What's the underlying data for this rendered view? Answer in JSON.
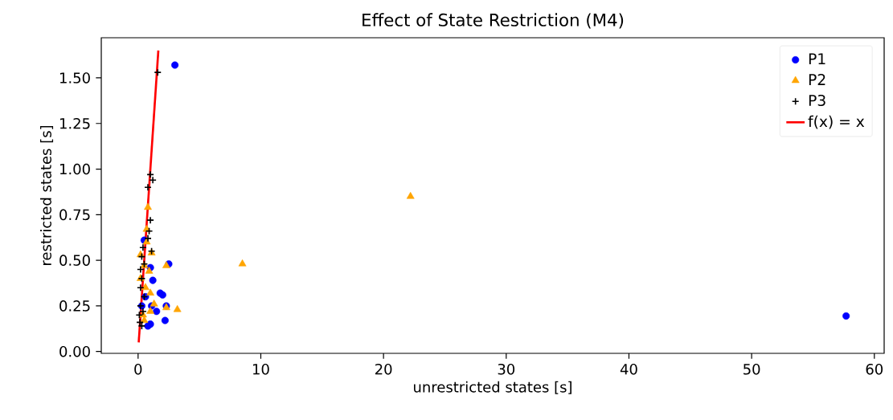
{
  "chart_data": {
    "type": "scatter",
    "title": "Effect of State Restriction (M4)",
    "xlabel": "unrestricted states [s]",
    "ylabel": "restricted states [s]",
    "xlim": [
      -3.0,
      60.8
    ],
    "ylim": [
      -0.01,
      1.72
    ],
    "xticks": [
      0,
      10,
      20,
      30,
      40,
      50,
      60
    ],
    "yticks": [
      {
        "value": 0,
        "label": "0.00"
      },
      {
        "value": 0.25,
        "label": "0.25"
      },
      {
        "value": 0.5,
        "label": "0.50"
      },
      {
        "value": 0.75,
        "label": "0.75"
      },
      {
        "value": 1.0,
        "label": "1.00"
      },
      {
        "value": 1.25,
        "label": "1.25"
      },
      {
        "value": 1.5,
        "label": "1.50"
      }
    ],
    "legend": "top right",
    "series": [
      {
        "name": "P1",
        "color": "#0000ff",
        "marker": "circle",
        "x": [
          3.0,
          57.7,
          2.5,
          1.0,
          1.2,
          1.8,
          2.0,
          2.3,
          2.2,
          1.5,
          1.0,
          0.8,
          0.3,
          0.6,
          1.1,
          0.5
        ],
        "values": [
          1.57,
          0.195,
          0.48,
          0.46,
          0.39,
          0.32,
          0.31,
          0.25,
          0.17,
          0.22,
          0.15,
          0.14,
          0.25,
          0.3,
          0.25,
          0.61
        ]
      },
      {
        "name": "P2",
        "color": "#ffa500",
        "marker": "triangle",
        "x": [
          22.2,
          8.5,
          2.3,
          3.2,
          2.3,
          0.8,
          0.7,
          0.7,
          1.1,
          0.2,
          0.5,
          0.9,
          1.0,
          1.3,
          1.0,
          0.4,
          0.6,
          0.2,
          0.5
        ],
        "values": [
          0.85,
          0.48,
          0.47,
          0.23,
          0.24,
          0.79,
          0.67,
          0.6,
          0.54,
          0.53,
          0.47,
          0.44,
          0.32,
          0.26,
          0.22,
          0.2,
          0.35,
          0.4,
          0.17
        ]
      },
      {
        "name": "P3",
        "color": "#000000",
        "marker": "cross",
        "x": [
          1.6,
          1.0,
          1.2,
          0.8,
          1.0,
          0.9,
          0.8,
          1.1,
          0.4,
          0.3,
          0.5,
          0.2,
          0.3,
          0.2,
          0.2,
          0.1,
          0.15,
          0.3,
          0.4,
          0.5
        ],
        "values": [
          1.53,
          0.97,
          0.94,
          0.9,
          0.72,
          0.66,
          0.62,
          0.55,
          0.57,
          0.52,
          0.48,
          0.45,
          0.4,
          0.35,
          0.25,
          0.2,
          0.16,
          0.14,
          0.22,
          0.3
        ]
      },
      {
        "name": "f(x) = x",
        "type": "line",
        "color": "#ff0000",
        "marker": "none",
        "x": [
          0.05,
          1.65
        ],
        "values": [
          0.05,
          1.65
        ]
      }
    ]
  }
}
